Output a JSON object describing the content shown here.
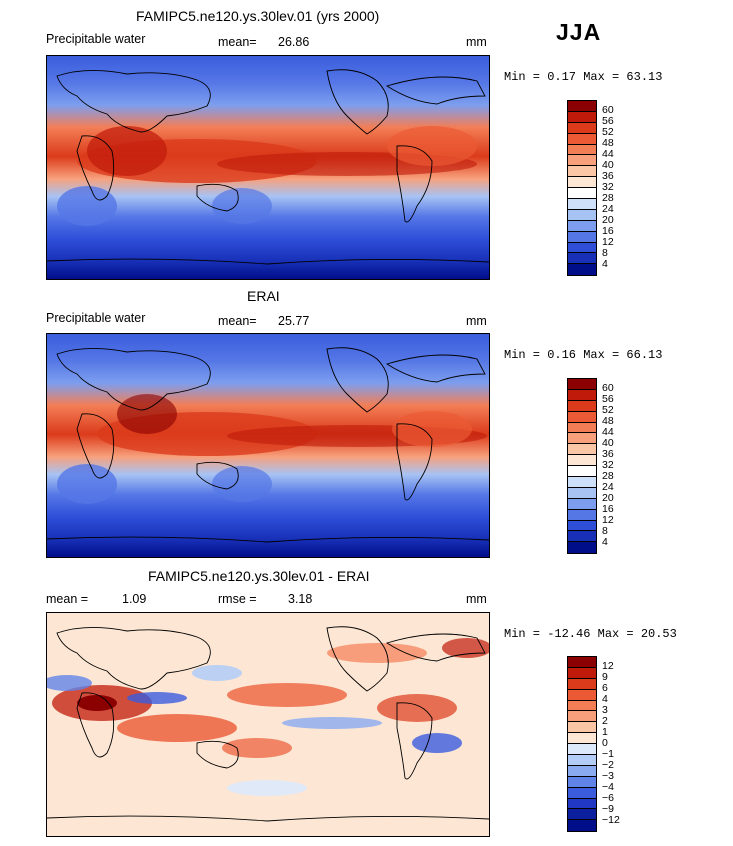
{
  "season": "JJA",
  "panels": [
    {
      "title": "FAMIPC5.ne120.ys.30lev.01 (yrs 2000)",
      "variable": "Precipitable water",
      "stat1_label": "mean=",
      "stat1_value": "26.86",
      "stat2_label": "",
      "stat2_value": "",
      "units": "mm",
      "minmax": "Min =   0.17 Max =  63.13",
      "colorbar_labels": [
        "60",
        "56",
        "52",
        "48",
        "44",
        "40",
        "36",
        "32",
        "28",
        "24",
        "20",
        "16",
        "12",
        "8",
        "4"
      ],
      "colorbar_colors": [
        "#8b0000",
        "#c01a0a",
        "#db3b1b",
        "#eb5a34",
        "#f37e55",
        "#f8a07c",
        "#fbc6a6",
        "#fde7d4",
        "#ffffff",
        "#cfe0fb",
        "#a7c3f4",
        "#7d9eee",
        "#5577e6",
        "#2f4fd9",
        "#1830b8",
        "#000e8a"
      ]
    },
    {
      "title": "ERAI",
      "variable": "Precipitable water",
      "stat1_label": "mean=",
      "stat1_value": "25.77",
      "stat2_label": "",
      "stat2_value": "",
      "units": "mm",
      "minmax": "Min =   0.16 Max =  66.13",
      "colorbar_labels": [
        "60",
        "56",
        "52",
        "48",
        "44",
        "40",
        "36",
        "32",
        "28",
        "24",
        "20",
        "16",
        "12",
        "8",
        "4"
      ],
      "colorbar_colors": [
        "#8b0000",
        "#c01a0a",
        "#db3b1b",
        "#eb5a34",
        "#f37e55",
        "#f8a07c",
        "#fbc6a6",
        "#fde7d4",
        "#ffffff",
        "#cfe0fb",
        "#a7c3f4",
        "#7d9eee",
        "#5577e6",
        "#2f4fd9",
        "#1830b8",
        "#000e8a"
      ]
    },
    {
      "title": "FAMIPC5.ne120.ys.30lev.01 - ERAI",
      "variable": "",
      "stat1_label": "mean =",
      "stat1_value": "1.09",
      "stat2_label": "rmse =",
      "stat2_value": "3.18",
      "units": "mm",
      "minmax": "Min = -12.46 Max =  20.53",
      "colorbar_labels": [
        "12",
        "9",
        "6",
        "4",
        "3",
        "2",
        "1",
        "0",
        "−1",
        "−2",
        "−3",
        "−4",
        "−6",
        "−9",
        "−12"
      ],
      "colorbar_colors": [
        "#8b0000",
        "#c01a0a",
        "#db3b1b",
        "#eb5a34",
        "#f37e55",
        "#f8a07c",
        "#fbc6a6",
        "#fde7d4",
        "#dce9fb",
        "#b4cdf6",
        "#8aabf0",
        "#6184e8",
        "#3b5ddd",
        "#2038c4",
        "#0c1f9e",
        "#000e8a"
      ]
    }
  ]
}
